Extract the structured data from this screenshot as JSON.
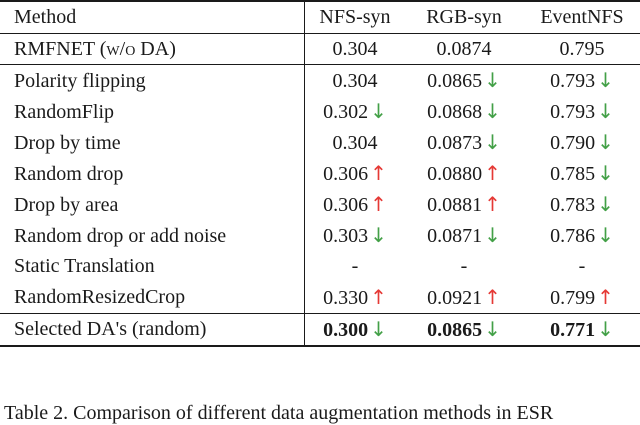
{
  "colors": {
    "up_arrow": "#e53935",
    "down_arrow": "#43a047"
  },
  "header": [
    "Method",
    "NFS-syn",
    "RGB-syn",
    "EventNFS"
  ],
  "baseline": {
    "method": "RMFNET (w/o DA)",
    "values": [
      "0.304",
      "0.0874",
      "0.795"
    ]
  },
  "rows": [
    {
      "method": "Polarity flipping",
      "bold": true,
      "cells": [
        {
          "v": "0.304",
          "arrow": ""
        },
        {
          "v": "0.0865",
          "arrow": "down"
        },
        {
          "v": "0.793",
          "arrow": "down"
        }
      ]
    },
    {
      "method": "RandomFlip",
      "bold": true,
      "cells": [
        {
          "v": "0.302",
          "arrow": "down"
        },
        {
          "v": "0.0868",
          "arrow": "down"
        },
        {
          "v": "0.793",
          "arrow": "down"
        }
      ]
    },
    {
      "method": "Drop by time",
      "bold": true,
      "cells": [
        {
          "v": "0.304",
          "arrow": ""
        },
        {
          "v": "0.0873",
          "arrow": "down"
        },
        {
          "v": "0.790",
          "arrow": "down"
        }
      ]
    },
    {
      "method": "Random drop",
      "bold": false,
      "cells": [
        {
          "v": "0.306",
          "arrow": "up"
        },
        {
          "v": "0.0880",
          "arrow": "up"
        },
        {
          "v": "0.785",
          "arrow": "down"
        }
      ]
    },
    {
      "method": "Drop by area",
      "bold": false,
      "cells": [
        {
          "v": "0.306",
          "arrow": "up"
        },
        {
          "v": "0.0881",
          "arrow": "up"
        },
        {
          "v": "0.783",
          "arrow": "down"
        }
      ]
    },
    {
      "method": "Random drop or add noise",
      "bold": true,
      "cells": [
        {
          "v": "0.303",
          "arrow": "down"
        },
        {
          "v": "0.0871",
          "arrow": "down"
        },
        {
          "v": "0.786",
          "arrow": "down"
        }
      ]
    },
    {
      "method": "Static Translation",
      "bold": false,
      "cells": [
        {
          "v": "-",
          "arrow": ""
        },
        {
          "v": "-",
          "arrow": ""
        },
        {
          "v": "-",
          "arrow": ""
        }
      ]
    },
    {
      "method": "RandomResizedCrop",
      "bold": false,
      "cells": [
        {
          "v": "0.330",
          "arrow": "up"
        },
        {
          "v": "0.0921",
          "arrow": "up"
        },
        {
          "v": "0.799",
          "arrow": "up"
        }
      ]
    }
  ],
  "final": {
    "method": "Selected DA's (random)",
    "cells": [
      {
        "v": "0.300",
        "arrow": "down"
      },
      {
        "v": "0.0865",
        "arrow": "down"
      },
      {
        "v": "0.771",
        "arrow": "down"
      }
    ]
  },
  "caption": "Table 2. Comparison of different data augmentation methods in ESR"
}
